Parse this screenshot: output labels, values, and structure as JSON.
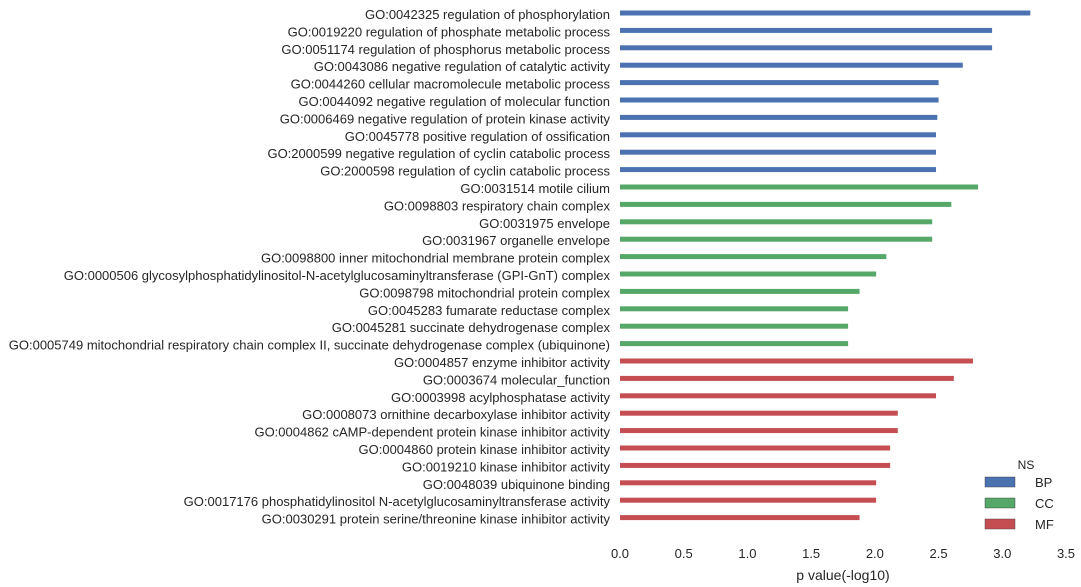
{
  "chart_data": {
    "type": "bar",
    "orientation": "horizontal",
    "xlabel": "p value(-log10)",
    "ylabel": "",
    "xlim": [
      0.0,
      3.5
    ],
    "xticks": [
      "0.0",
      "0.5",
      "1.0",
      "1.5",
      "2.0",
      "2.5",
      "3.0",
      "3.5"
    ],
    "grid": false,
    "legend": {
      "title": "NS",
      "position": "bottom-right",
      "entries": [
        {
          "name": "BP",
          "color": "#4c72b0"
        },
        {
          "name": "CC",
          "color": "#55a868"
        },
        {
          "name": "MF",
          "color": "#c44e52"
        }
      ]
    },
    "bars": [
      {
        "label": "GO:0042325 regulation of phosphorylation",
        "ns": "BP",
        "value": 3.22
      },
      {
        "label": "GO:0019220 regulation of phosphate metabolic process",
        "ns": "BP",
        "value": 2.92
      },
      {
        "label": "GO:0051174 regulation of phosphorus metabolic process",
        "ns": "BP",
        "value": 2.92
      },
      {
        "label": "GO:0043086 negative regulation of catalytic activity",
        "ns": "BP",
        "value": 2.69
      },
      {
        "label": "GO:0044260 cellular macromolecule metabolic process",
        "ns": "BP",
        "value": 2.5
      },
      {
        "label": "GO:0044092 negative regulation of molecular function",
        "ns": "BP",
        "value": 2.5
      },
      {
        "label": "GO:0006469 negative regulation of protein kinase activity",
        "ns": "BP",
        "value": 2.49
      },
      {
        "label": "GO:0045778 positive regulation of ossification",
        "ns": "BP",
        "value": 2.48
      },
      {
        "label": "GO:2000599 negative regulation of cyclin catabolic process",
        "ns": "BP",
        "value": 2.48
      },
      {
        "label": "GO:2000598 regulation of cyclin catabolic process",
        "ns": "BP",
        "value": 2.48
      },
      {
        "label": "GO:0031514 motile cilium",
        "ns": "CC",
        "value": 2.81
      },
      {
        "label": "GO:0098803 respiratory chain complex",
        "ns": "CC",
        "value": 2.6
      },
      {
        "label": "GO:0031975 envelope",
        "ns": "CC",
        "value": 2.45
      },
      {
        "label": "GO:0031967 organelle envelope",
        "ns": "CC",
        "value": 2.45
      },
      {
        "label": "GO:0098800 inner mitochondrial membrane protein complex",
        "ns": "CC",
        "value": 2.09
      },
      {
        "label": "GO:0000506 glycosylphosphatidylinositol-N-acetylglucosaminyltransferase (GPI-GnT) complex",
        "ns": "CC",
        "value": 2.01
      },
      {
        "label": "GO:0098798 mitochondrial protein complex",
        "ns": "CC",
        "value": 1.88
      },
      {
        "label": "GO:0045283 fumarate reductase complex",
        "ns": "CC",
        "value": 1.79
      },
      {
        "label": "GO:0045281 succinate dehydrogenase complex",
        "ns": "CC",
        "value": 1.79
      },
      {
        "label": "GO:0005749 mitochondrial respiratory chain complex II, succinate dehydrogenase complex (ubiquinone)",
        "ns": "CC",
        "value": 1.79
      },
      {
        "label": "GO:0004857 enzyme inhibitor activity",
        "ns": "MF",
        "value": 2.77
      },
      {
        "label": "GO:0003674 molecular_function",
        "ns": "MF",
        "value": 2.62
      },
      {
        "label": "GO:0003998 acylphosphatase activity",
        "ns": "MF",
        "value": 2.48
      },
      {
        "label": "GO:0008073 ornithine decarboxylase inhibitor activity",
        "ns": "MF",
        "value": 2.18
      },
      {
        "label": "GO:0004862 cAMP-dependent protein kinase inhibitor activity",
        "ns": "MF",
        "value": 2.18
      },
      {
        "label": "GO:0004860 protein kinase inhibitor activity",
        "ns": "MF",
        "value": 2.12
      },
      {
        "label": "GO:0019210 kinase inhibitor activity",
        "ns": "MF",
        "value": 2.12
      },
      {
        "label": "GO:0048039 ubiquinone binding",
        "ns": "MF",
        "value": 2.01
      },
      {
        "label": "GO:0017176 phosphatidylinositol N-acetylglucosaminyltransferase activity",
        "ns": "MF",
        "value": 2.01
      },
      {
        "label": "GO:0030291 protein serine/threonine kinase inhibitor activity",
        "ns": "MF",
        "value": 1.88
      }
    ]
  }
}
